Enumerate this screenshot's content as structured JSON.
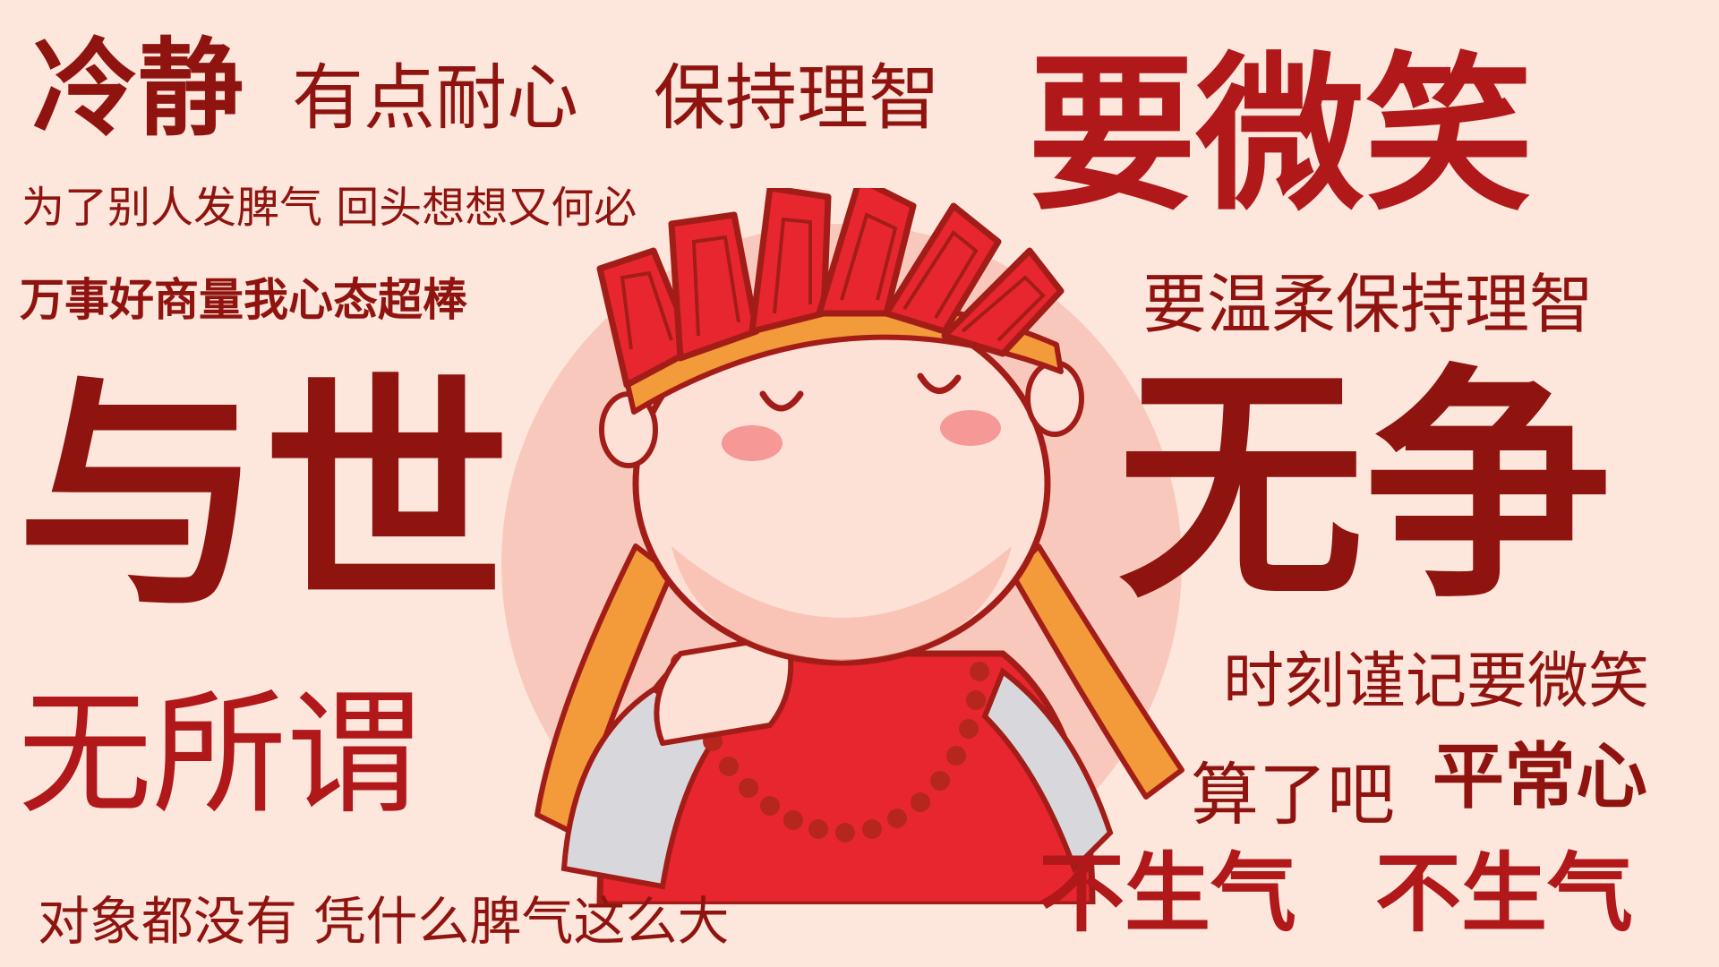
{
  "phrases": {
    "lengjing": "冷静",
    "youdian_naixin": "有点耐心",
    "baochi_lizhi": "保持理智",
    "yao_weixiao": "要微笑",
    "pieqi_line": "为了别人发脾气  回头想想又何必",
    "wanshi_line": "万事好商量我心态超棒",
    "wenrou_line": "要温柔保持理智",
    "yushi": "与世",
    "wuzheng": "无争",
    "wusuowei": "无所谓",
    "shike_line": "时刻谨记要微笑",
    "suanle": "算了吧",
    "pingchangxin": "平常心",
    "bushengqi_1": "不生气",
    "bushengqi_2": "不生气",
    "duixiang_line": "对象都没有 凭什么脾气这么大"
  },
  "colors": {
    "background": "#fde6dc",
    "text_dark_red": "#8f140f",
    "text_red": "#b0181a",
    "circle": "#f9c8bc",
    "robe_red": "#e8262f",
    "headband_orange": "#f39a3a",
    "skin": "#fde0d6",
    "sleeve_grey": "#d8d8dc",
    "bead_dark_red": "#b5261d",
    "outline": "#a31d18"
  },
  "illustration": {
    "subject": "cartoon-monk",
    "expression": "serene-closed-eyes",
    "accessories": [
      "flame-crown",
      "orange-headband",
      "prayer-bead-necklace",
      "ribbons"
    ]
  }
}
